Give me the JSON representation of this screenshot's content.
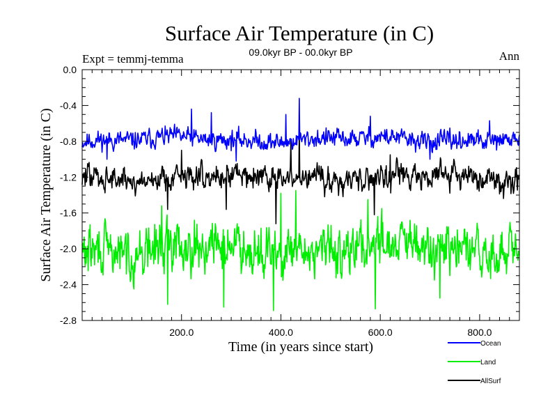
{
  "chart_data": {
    "type": "line",
    "title": "Surface Air Temperature (in C)",
    "subtitle": "09.0kyr BP - 00.0kyr BP",
    "experiment_label": "Expt = temmj-temma",
    "period_label": "Ann",
    "xlabel": "Time (in years since start)",
    "ylabel": "Surface Air Temperature (in C)",
    "xlim": [
      0,
      880
    ],
    "ylim": [
      -2.8,
      0.0
    ],
    "x_ticks": [
      200,
      400,
      600,
      800
    ],
    "x_tick_labels": [
      "200.0",
      "400.0",
      "600.0",
      "800.0"
    ],
    "y_ticks": [
      0.0,
      -0.4,
      -0.8,
      -1.2,
      -1.6,
      -2.0,
      -2.4,
      -2.8
    ],
    "y_tick_labels": [
      "0.0",
      "-0.4",
      "-0.8",
      "-1.2",
      "-1.6",
      "-2.0",
      "-2.4",
      "-2.8"
    ],
    "legend_position": "bottom-right",
    "series": [
      {
        "name": "Ocean",
        "color": "#0000ff",
        "mean": -0.78,
        "amplitude": 0.09,
        "peaks": [
          [
            220,
            -0.44
          ],
          [
            260,
            -0.48
          ],
          [
            410,
            -0.5
          ],
          [
            437,
            -0.32
          ],
          [
            580,
            -0.52
          ],
          [
            820,
            -0.57
          ]
        ],
        "dips": [
          [
            50,
            -1.0
          ],
          [
            310,
            -1.02
          ],
          [
            700,
            -1.0
          ]
        ]
      },
      {
        "name": "Land",
        "color": "#00ee00",
        "mean": -2.0,
        "amplitude": 0.23,
        "peaks": [
          [
            160,
            -1.52
          ],
          [
            400,
            -1.38
          ],
          [
            430,
            -1.35
          ],
          [
            575,
            -1.45
          ]
        ],
        "dips": [
          [
            172,
            -2.62
          ],
          [
            285,
            -2.65
          ],
          [
            385,
            -2.69
          ],
          [
            590,
            -2.67
          ],
          [
            720,
            -2.55
          ]
        ]
      },
      {
        "name": "AllSurf",
        "color": "#000000",
        "mean": -1.2,
        "amplitude": 0.12,
        "peaks": [
          [
            200,
            -0.9
          ],
          [
            420,
            -0.8
          ],
          [
            437,
            -0.62
          ],
          [
            620,
            -0.95
          ]
        ],
        "dips": [
          [
            172,
            -1.56
          ],
          [
            290,
            -1.56
          ],
          [
            390,
            -1.72
          ],
          [
            588,
            -1.62
          ]
        ]
      }
    ]
  }
}
